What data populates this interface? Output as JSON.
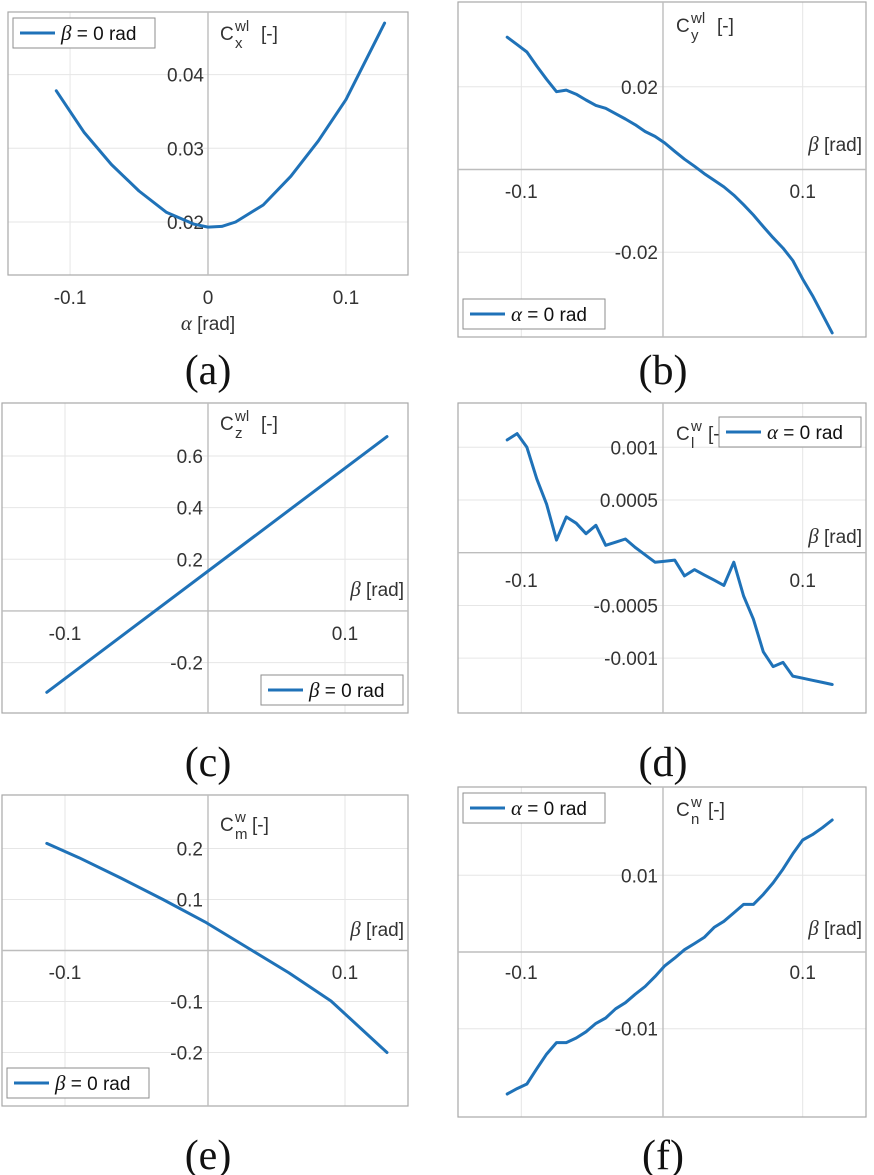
{
  "colors": {
    "series": "#1f72b8",
    "grid": "#e6e6e6",
    "frame": "#a8a8a8",
    "zero": "#bdbdbd"
  },
  "chart_data": [
    {
      "caption": "(a)",
      "type": "line",
      "ylabel": "C",
      "ylabel_sup": "wl",
      "ylabel_sub": "x",
      "ylabel_unit": "[-]",
      "xlabel_sym": "α",
      "xlabel_unit": "[rad]",
      "legend_label": "β = 0 rad",
      "legend_sym": "β",
      "legend_rest": " = 0 rad",
      "legend_pos": "top-left",
      "xlim": [
        -0.145,
        0.145
      ],
      "ylim": [
        0.0128,
        0.0485
      ],
      "xticks": [
        -0.1,
        0,
        0.1
      ],
      "xtick_labels": [
        "-0.1",
        "0",
        "0.1"
      ],
      "yticks": [
        0.02,
        0.03,
        0.04
      ],
      "ytick_labels": [
        "0.02",
        "0.03",
        "0.04"
      ],
      "x": [
        -0.11,
        -0.09,
        -0.07,
        -0.05,
        -0.03,
        -0.01,
        0,
        0.01,
        0.02,
        0.04,
        0.06,
        0.08,
        0.1,
        0.128
      ],
      "y": [
        0.0378,
        0.0322,
        0.0278,
        0.0242,
        0.0213,
        0.0197,
        0.0193,
        0.0194,
        0.02,
        0.0223,
        0.0262,
        0.031,
        0.0366,
        0.047
      ]
    },
    {
      "caption": "(b)",
      "type": "line",
      "ylabel": "C",
      "ylabel_sup": "wl",
      "ylabel_sub": "y",
      "ylabel_unit": "[-]",
      "xlabel_sym": "β",
      "xlabel_unit": "[rad]",
      "legend_label": "α = 0 rad",
      "legend_sym": "α",
      "legend_rest": " = 0 rad",
      "legend_pos": "bottom-left",
      "xlim": [
        -0.145,
        0.145
      ],
      "ylim": [
        -0.0405,
        0.0405
      ],
      "xticks": [
        -0.1,
        0.1
      ],
      "xtick_labels": [
        "-0.1",
        "0.1"
      ],
      "yticks": [
        -0.02,
        0.02
      ],
      "ytick_labels": [
        "-0.02",
        "0.02"
      ],
      "x": [
        -0.11,
        -0.103,
        -0.096,
        -0.089,
        -0.082,
        -0.075,
        -0.068,
        -0.061,
        -0.054,
        -0.047,
        -0.04,
        -0.033,
        -0.026,
        -0.019,
        -0.012,
        -0.005,
        0.002,
        0.009,
        0.016,
        0.023,
        0.03,
        0.037,
        0.044,
        0.051,
        0.058,
        0.065,
        0.072,
        0.079,
        0.086,
        0.093,
        0.1,
        0.107,
        0.114,
        0.121
      ],
      "y": [
        0.032,
        0.0302,
        0.0284,
        0.025,
        0.0218,
        0.0188,
        0.0192,
        0.0182,
        0.0168,
        0.0155,
        0.0148,
        0.0135,
        0.0122,
        0.0108,
        0.0092,
        0.008,
        0.0064,
        0.0044,
        0.0025,
        0.0008,
        -0.001,
        -0.0026,
        -0.0042,
        -0.0062,
        -0.0085,
        -0.011,
        -0.0138,
        -0.0165,
        -0.019,
        -0.022,
        -0.0265,
        -0.0305,
        -0.035,
        -0.0395
      ]
    },
    {
      "caption": "(c)",
      "type": "line",
      "ylabel": "C",
      "ylabel_sup": "wl",
      "ylabel_sub": "z",
      "ylabel_unit": "[-]",
      "xlabel_sym": "β",
      "xlabel_unit": "[rad]",
      "legend_label": "β = 0 rad",
      "legend_sym": "β",
      "legend_rest": " = 0 rad",
      "legend_pos": "bottom-right",
      "xlim": [
        -0.145,
        0.145
      ],
      "ylim": [
        -0.395,
        0.805
      ],
      "xticks": [
        -0.1,
        0.1
      ],
      "xtick_labels": [
        "-0.1",
        "0.1"
      ],
      "yticks": [
        -0.2,
        0.2,
        0.4,
        0.6
      ],
      "ytick_labels": [
        "-0.2",
        "0.2",
        "0.4",
        "0.6"
      ],
      "x": [
        -0.113,
        0.13
      ],
      "y": [
        -0.315,
        0.675
      ]
    },
    {
      "caption": "(d)",
      "type": "line",
      "ylabel": "C",
      "ylabel_sup": "w",
      "ylabel_sub": "l",
      "ylabel_unit": "[-]",
      "xlabel_sym": "β",
      "xlabel_unit": "[rad]",
      "legend_label": "α = 0 rad",
      "legend_sym": "α",
      "legend_rest": " = 0 rad",
      "legend_pos": "top-right",
      "xlim": [
        -0.145,
        0.145
      ],
      "ylim": [
        -0.00152,
        0.00142
      ],
      "xticks": [
        -0.1,
        0.1
      ],
      "xtick_labels": [
        "-0.1",
        "0.1"
      ],
      "yticks": [
        -0.001,
        -0.0005,
        0.0005,
        0.001
      ],
      "ytick_labels": [
        "-0.001",
        "-0.0005",
        "0.0005",
        "0.001"
      ],
      "x": [
        -0.11,
        -0.103,
        -0.096,
        -0.089,
        -0.082,
        -0.075,
        -0.068,
        -0.061,
        -0.054,
        -0.047,
        -0.04,
        -0.033,
        -0.026,
        -0.019,
        -0.012,
        -0.005,
        0.002,
        0.009,
        0.016,
        0.023,
        0.03,
        0.037,
        0.044,
        0.051,
        0.058,
        0.065,
        0.072,
        0.079,
        0.086,
        0.093,
        0.1,
        0.107,
        0.114,
        0.121
      ],
      "y": [
        0.00107,
        0.00113,
        0.001,
        0.0007,
        0.00046,
        0.00012,
        0.00034,
        0.00028,
        0.00018,
        0.00026,
        7e-05,
        0.0001,
        0.00013,
        5e-05,
        -2e-05,
        -9e-05,
        -8e-05,
        -7e-05,
        -0.00022,
        -0.00016,
        -0.00021,
        -0.00026,
        -0.00031,
        -9e-05,
        -0.00041,
        -0.00063,
        -0.00094,
        -0.00108,
        -0.00104,
        -0.00117,
        -0.00119,
        -0.00121,
        -0.00123,
        -0.00125
      ]
    },
    {
      "caption": "(e)",
      "type": "line",
      "ylabel": "C",
      "ylabel_sup": "w",
      "ylabel_sub": "m",
      "ylabel_unit": "[-]",
      "xlabel_sym": "β",
      "xlabel_unit": "[rad]",
      "legend_label": "β = 0 rad",
      "legend_sym": "β",
      "legend_rest": " = 0 rad",
      "legend_pos": "bottom-left",
      "xlim": [
        -0.145,
        0.145
      ],
      "ylim": [
        -0.305,
        0.305
      ],
      "xticks": [
        -0.1,
        0.1
      ],
      "xtick_labels": [
        "-0.1",
        "0.1"
      ],
      "yticks": [
        -0.2,
        -0.1,
        0.1,
        0.2
      ],
      "ytick_labels": [
        "-0.2",
        "-0.1",
        "0.1",
        "0.2"
      ],
      "x": [
        -0.113,
        -0.09,
        -0.06,
        -0.03,
        0,
        0.03,
        0.06,
        0.09,
        0.13
      ],
      "y": [
        0.21,
        0.182,
        0.142,
        0.1,
        0.056,
        0.006,
        -0.044,
        -0.099,
        -0.2
      ]
    },
    {
      "caption": "(f)",
      "type": "line",
      "ylabel": "C",
      "ylabel_sup": "w",
      "ylabel_sub": "n",
      "ylabel_unit": "[-]",
      "xlabel_sym": "β",
      "xlabel_unit": "[rad]",
      "legend_label": "α = 0 rad",
      "legend_sym": "α",
      "legend_rest": " = 0 rad",
      "legend_pos": "top-left",
      "xlim": [
        -0.145,
        0.145
      ],
      "ylim": [
        -0.0215,
        0.0215
      ],
      "xticks": [
        -0.1,
        0.1
      ],
      "xtick_labels": [
        "-0.1",
        "0.1"
      ],
      "yticks": [
        -0.01,
        0.01
      ],
      "ytick_labels": [
        "-0.01",
        "0.01"
      ],
      "x": [
        -0.11,
        -0.103,
        -0.096,
        -0.089,
        -0.082,
        -0.075,
        -0.068,
        -0.061,
        -0.054,
        -0.047,
        -0.04,
        -0.033,
        -0.026,
        -0.019,
        -0.012,
        -0.005,
        0.002,
        0.009,
        0.016,
        0.023,
        0.03,
        0.037,
        0.044,
        0.051,
        0.058,
        0.065,
        0.072,
        0.079,
        0.086,
        0.093,
        0.1,
        0.107,
        0.114,
        0.121
      ],
      "y": [
        -0.0185,
        -0.0178,
        -0.0172,
        -0.0152,
        -0.0133,
        -0.0118,
        -0.0118,
        -0.0112,
        -0.0104,
        -0.0093,
        -0.0086,
        -0.0074,
        -0.0066,
        -0.0055,
        -0.0045,
        -0.0032,
        -0.0018,
        -0.0008,
        0.0003,
        0.0011,
        0.0019,
        0.0032,
        0.004,
        0.0051,
        0.0062,
        0.0062,
        0.0075,
        0.009,
        0.0108,
        0.0128,
        0.0146,
        0.0153,
        0.0162,
        0.0172
      ]
    }
  ]
}
